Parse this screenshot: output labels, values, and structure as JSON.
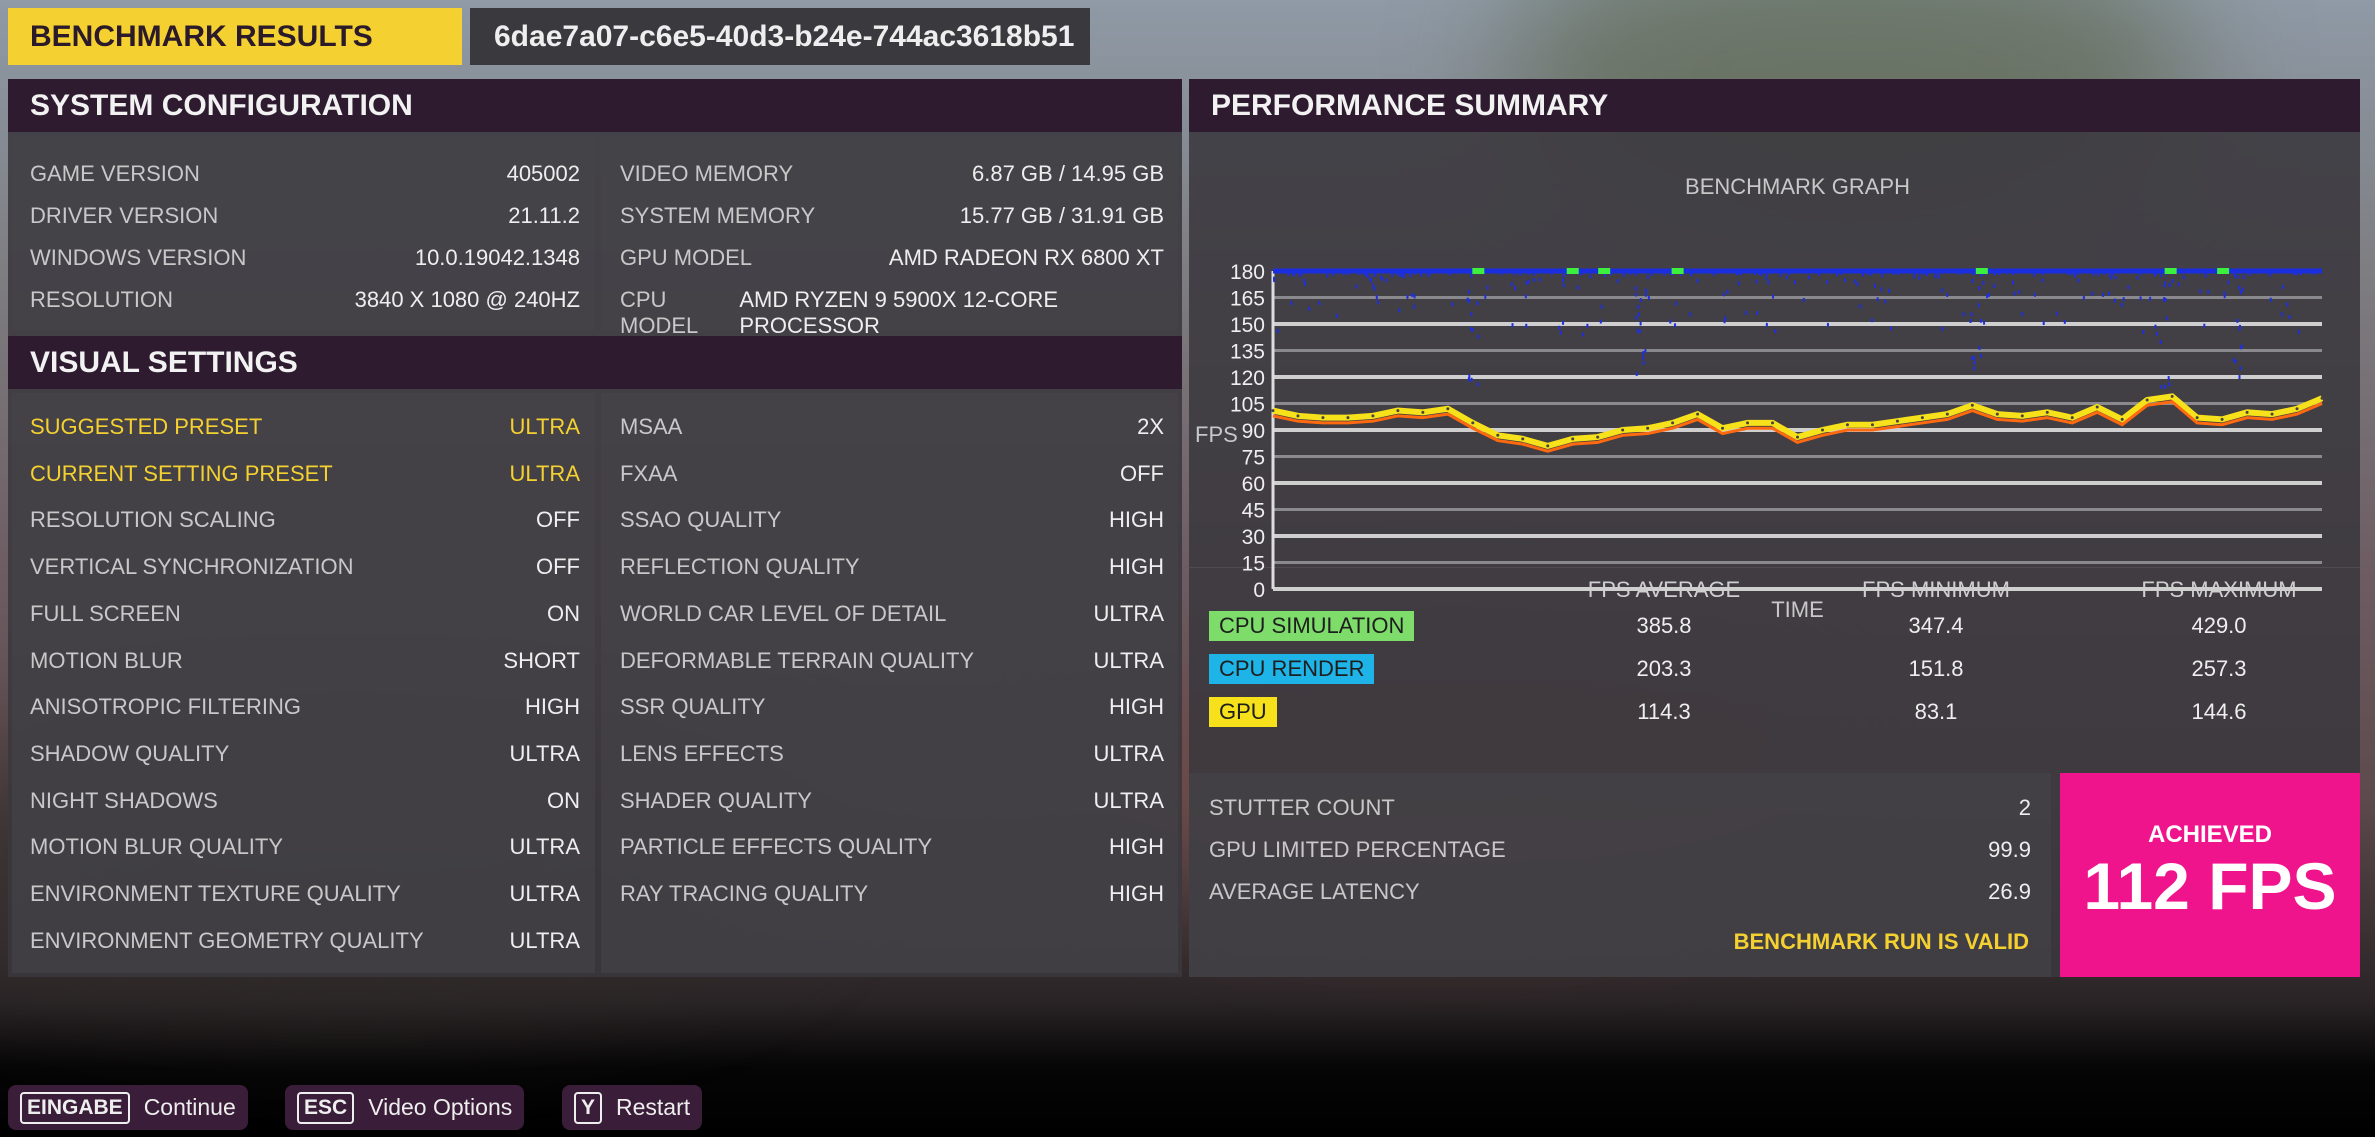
{
  "header": {
    "title": "BENCHMARK RESULTS",
    "run_id": "6dae7a07-c6e5-40d3-b24e-744ac3618b51"
  },
  "system_configuration": {
    "title": "SYSTEM CONFIGURATION",
    "left": [
      {
        "label": "GAME VERSION",
        "value": "405002"
      },
      {
        "label": "DRIVER VERSION",
        "value": "21.11.2"
      },
      {
        "label": "WINDOWS VERSION",
        "value": "10.0.19042.1348"
      },
      {
        "label": "RESOLUTION",
        "value": "3840 x 1080 @ 240Hz"
      }
    ],
    "right": [
      {
        "label": "VIDEO MEMORY",
        "value": "6.87 GB / 14.95 GB"
      },
      {
        "label": "SYSTEM MEMORY",
        "value": "15.77 GB / 31.91 GB"
      },
      {
        "label": "GPU MODEL",
        "value": "AMD Radeon RX 6800 XT"
      },
      {
        "label": "CPU MODEL",
        "value": "AMD Ryzen 9 5900X 12-Core Processor"
      }
    ]
  },
  "visual_settings": {
    "title": "VISUAL SETTINGS",
    "left": [
      {
        "label": "SUGGESTED PRESET",
        "value": "ULTRA",
        "highlight": true
      },
      {
        "label": "CURRENT SETTING PRESET",
        "value": "ULTRA",
        "highlight": true
      },
      {
        "label": "RESOLUTION SCALING",
        "value": "OFF"
      },
      {
        "label": "VERTICAL SYNCHRONIZATION",
        "value": "OFF"
      },
      {
        "label": "FULL SCREEN",
        "value": "ON"
      },
      {
        "label": "MOTION BLUR",
        "value": "SHORT"
      },
      {
        "label": "ANISOTROPIC FILTERING",
        "value": "HIGH"
      },
      {
        "label": "SHADOW QUALITY",
        "value": "ULTRA"
      },
      {
        "label": "NIGHT SHADOWS",
        "value": "ON"
      },
      {
        "label": "MOTION BLUR QUALITY",
        "value": "ULTRA"
      },
      {
        "label": "ENVIRONMENT TEXTURE QUALITY",
        "value": "ULTRA"
      },
      {
        "label": "ENVIRONMENT GEOMETRY QUALITY",
        "value": "ULTRA"
      }
    ],
    "right": [
      {
        "label": "MSAA",
        "value": "2X"
      },
      {
        "label": "FXAA",
        "value": "OFF"
      },
      {
        "label": "SSAO QUALITY",
        "value": "HIGH"
      },
      {
        "label": "REFLECTION QUALITY",
        "value": "HIGH"
      },
      {
        "label": "WORLD CAR LEVEL OF DETAIL",
        "value": "ULTRA"
      },
      {
        "label": "DEFORMABLE TERRAIN QUALITY",
        "value": "ULTRA"
      },
      {
        "label": "SSR QUALITY",
        "value": "HIGH"
      },
      {
        "label": "LENS EFFECTS",
        "value": "ULTRA"
      },
      {
        "label": "SHADER QUALITY",
        "value": "ULTRA"
      },
      {
        "label": "PARTICLE EFFECTS QUALITY",
        "value": "HIGH"
      },
      {
        "label": "RAY TRACING QUALITY",
        "value": "HIGH"
      }
    ]
  },
  "performance_summary": {
    "title": "PERFORMANCE SUMMARY",
    "columns": [
      "FPS AVERAGE",
      "FPS MINIMUM",
      "FPS MAXIMUM"
    ],
    "rows": [
      {
        "label": "CPU SIMULATION",
        "color": "#7ddc6a",
        "values": [
          "385.8",
          "347.4",
          "429.0"
        ]
      },
      {
        "label": "CPU RENDER",
        "color": "#1fb4e8",
        "values": [
          "203.3",
          "151.8",
          "257.3"
        ]
      },
      {
        "label": "GPU",
        "color": "#f6e11a",
        "values": [
          "114.3",
          "83.1",
          "144.6"
        ]
      }
    ],
    "stats": [
      {
        "label": "STUTTER COUNT",
        "value": "2"
      },
      {
        "label": "GPU LIMITED PERCENTAGE",
        "value": "99.9"
      },
      {
        "label": "AVERAGE LATENCY",
        "value": "26.9"
      }
    ],
    "valid_text": "BENCHMARK RUN IS VALID",
    "achieved_label": "ACHIEVED",
    "achieved_value": "112 FPS",
    "achieved_color": "#f0148c"
  },
  "chart_data": {
    "type": "line",
    "title": "BENCHMARK GRAPH",
    "xlabel": "TIME",
    "ylabel": "FPS",
    "ylim": [
      0,
      180
    ],
    "yticks": [
      "0",
      "15",
      "30",
      "45",
      "60",
      "75",
      "90",
      "105",
      "120",
      "135",
      "150",
      "165",
      "180"
    ],
    "grid": true,
    "series": [
      {
        "name": "GPU",
        "color": "#f6e11a",
        "values": [
          101,
          98,
          97,
          97,
          98,
          101,
          100,
          102,
          94,
          87,
          85,
          81,
          85,
          86,
          90,
          91,
          94,
          99,
          91,
          94,
          94,
          86,
          90,
          93,
          93,
          95,
          97,
          99,
          104,
          99,
          98,
          100,
          97,
          103,
          96,
          107,
          109,
          97,
          96,
          100,
          99,
          102,
          108
        ]
      },
      {
        "color": "#ff6a10",
        "values": [
          98,
          95,
          94,
          94,
          95,
          98,
          97,
          99,
          91,
          84,
          82,
          78,
          82,
          83,
          87,
          88,
          91,
          96,
          88,
          91,
          91,
          83,
          87,
          90,
          90,
          92,
          94,
          96,
          101,
          96,
          95,
          97,
          94,
          100,
          93,
          104,
          106,
          94,
          93,
          97,
          96,
          99,
          105
        ]
      },
      {
        "name": "CPU RENDER",
        "color": "#1a2ee0",
        "values": [
          180,
          180,
          180,
          180,
          180,
          180,
          180,
          180,
          180,
          180,
          180,
          180,
          180,
          180,
          180,
          180,
          180,
          180,
          180,
          180,
          180,
          180,
          180,
          180,
          180,
          180,
          180,
          180,
          180,
          180,
          180,
          180,
          180,
          180,
          180,
          180,
          180,
          180,
          180,
          180,
          180,
          180,
          180
        ]
      }
    ]
  },
  "footer": {
    "buttons": [
      {
        "key": "EINGABE",
        "label": "Continue"
      },
      {
        "key": "ESC",
        "label": "Video Options"
      },
      {
        "key": "Y",
        "label": "Restart"
      }
    ]
  }
}
